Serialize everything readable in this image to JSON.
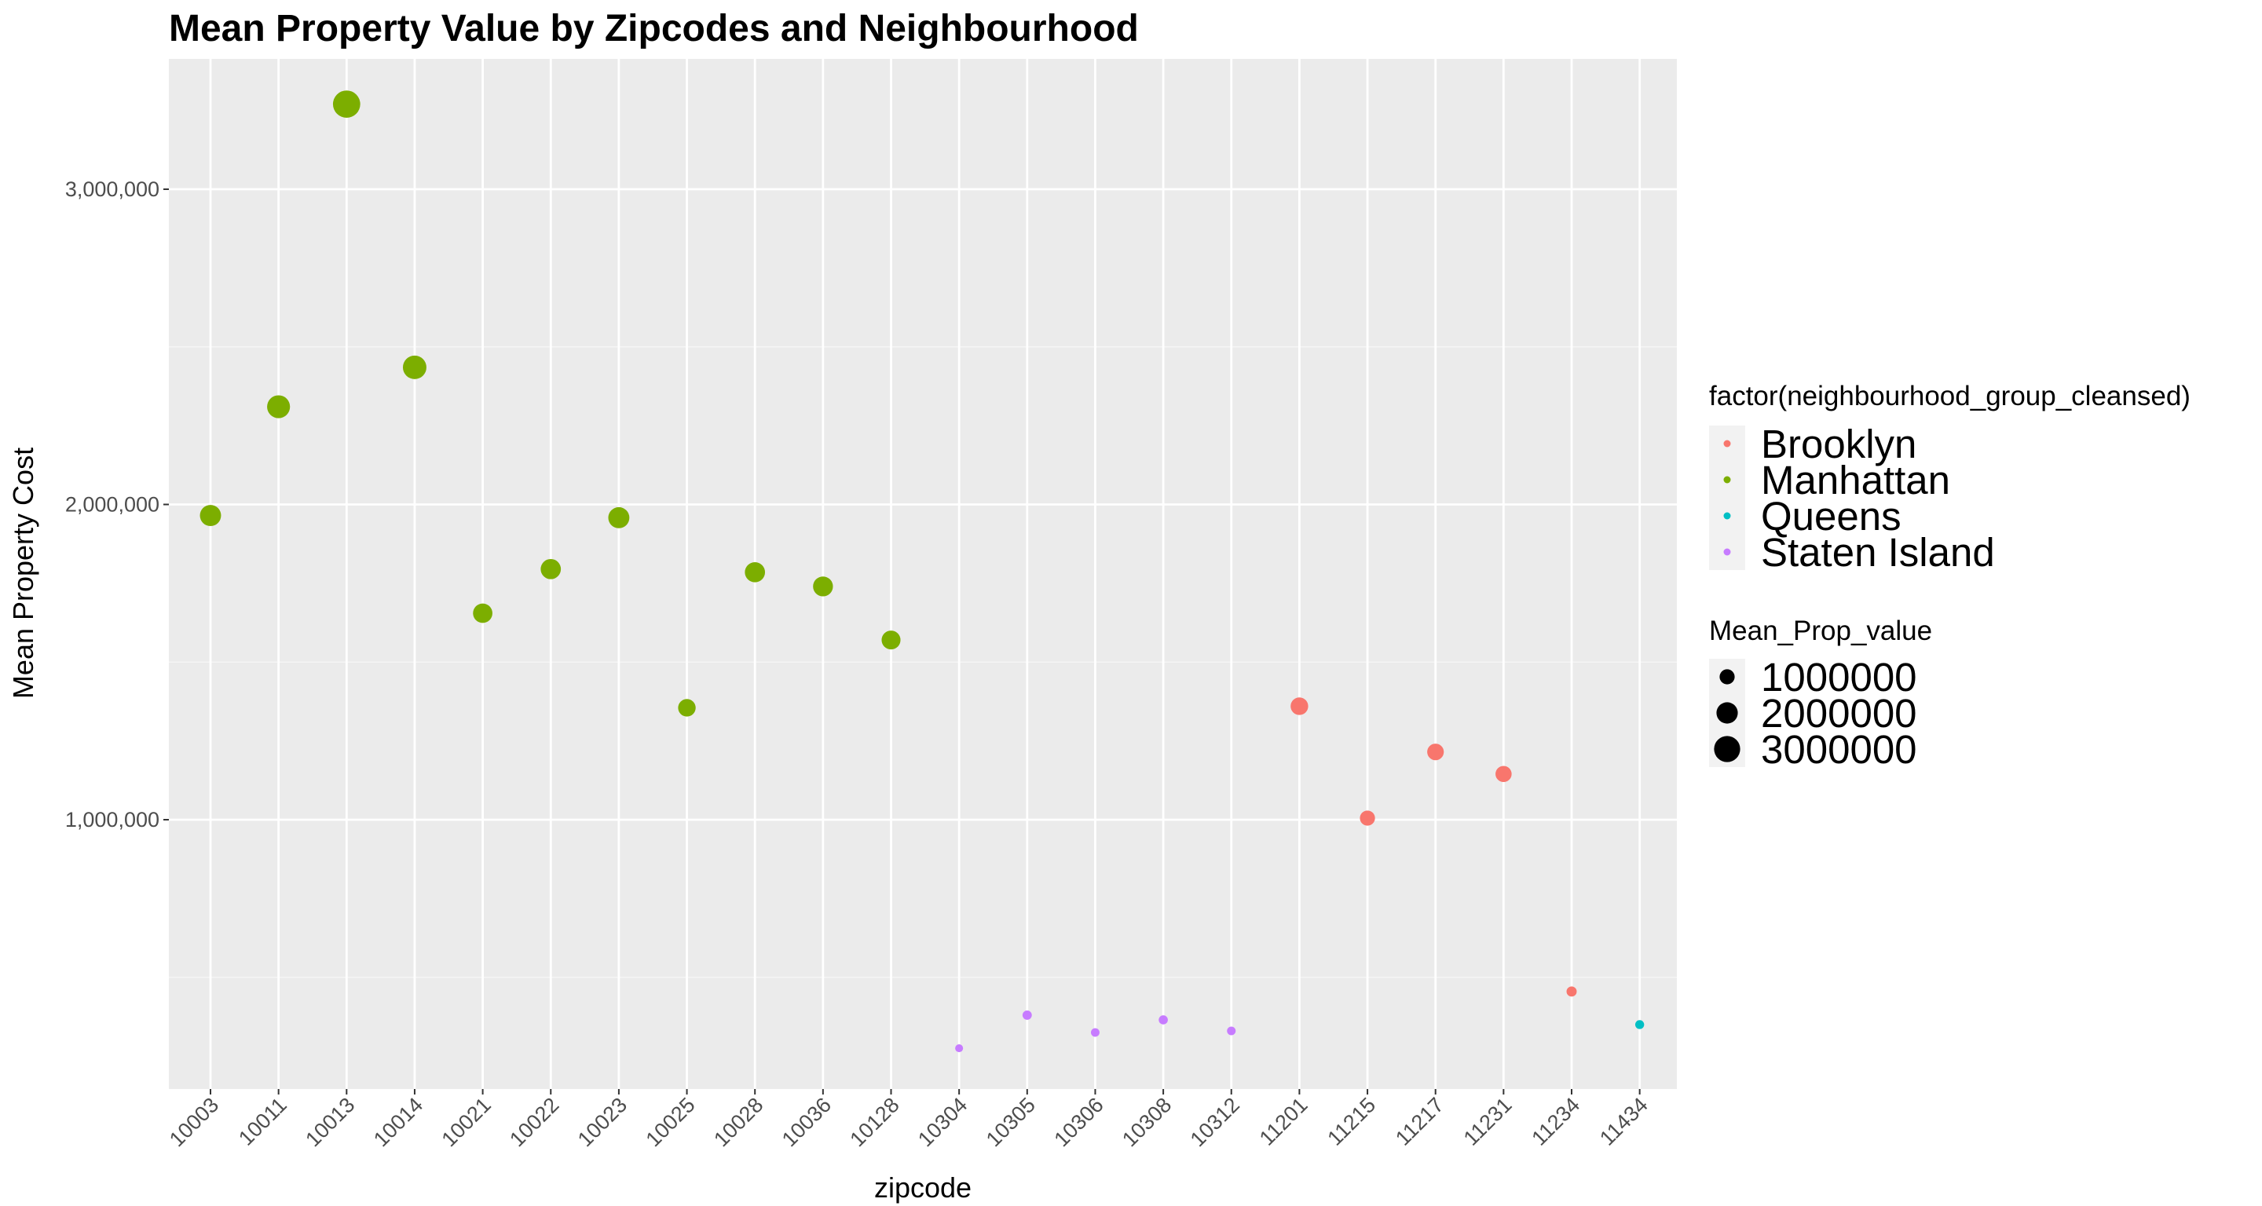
{
  "chart_data": {
    "type": "scatter",
    "title": "Mean Property Value by Zipcodes and Neighbourhood",
    "xlabel": "zipcode",
    "ylabel": "Mean Property Cost",
    "categories": [
      "10003",
      "10011",
      "10013",
      "10014",
      "10021",
      "10022",
      "10023",
      "10025",
      "10028",
      "10036",
      "10128",
      "10304",
      "10305",
      "10306",
      "10308",
      "10312",
      "11201",
      "11215",
      "11217",
      "11231",
      "11234",
      "11434"
    ],
    "ylim": [
      0,
      3400000
    ],
    "y_ticks": [
      1000000,
      2000000,
      3000000
    ],
    "y_tick_labels": [
      "1,000,000",
      "2,000,000",
      "3,000,000"
    ],
    "grid": true,
    "colors": {
      "panel_background": "#ebebeb",
      "grid_major": "#ffffff",
      "grid_minor": "#f5f5f5"
    },
    "series": [
      {
        "name": "Brooklyn",
        "color": "#f8766d",
        "points": [
          {
            "x": "11201",
            "y": 1360000
          },
          {
            "x": "11215",
            "y": 1005000
          },
          {
            "x": "11217",
            "y": 1215000
          },
          {
            "x": "11231",
            "y": 1145000
          },
          {
            "x": "11234",
            "y": 455000
          }
        ]
      },
      {
        "name": "Manhattan",
        "color": "#7cae00",
        "points": [
          {
            "x": "10003",
            "y": 1965000
          },
          {
            "x": "10011",
            "y": 2310000
          },
          {
            "x": "10013",
            "y": 3270000
          },
          {
            "x": "10014",
            "y": 2435000
          },
          {
            "x": "10021",
            "y": 1655000
          },
          {
            "x": "10022",
            "y": 1795000
          },
          {
            "x": "10023",
            "y": 1958000
          },
          {
            "x": "10025",
            "y": 1355000
          },
          {
            "x": "10028",
            "y": 1785000
          },
          {
            "x": "10036",
            "y": 1740000
          },
          {
            "x": "10128",
            "y": 1570000
          }
        ]
      },
      {
        "name": "Queens",
        "color": "#00bfc4",
        "points": [
          {
            "x": "11434",
            "y": 350000
          }
        ]
      },
      {
        "name": "Staten Island",
        "color": "#c77cff",
        "points": [
          {
            "x": "10304",
            "y": 275000
          },
          {
            "x": "10305",
            "y": 380000
          },
          {
            "x": "10306",
            "y": 325000
          },
          {
            "x": "10308",
            "y": 365000
          },
          {
            "x": "10312",
            "y": 330000
          }
        ]
      }
    ],
    "legend": {
      "placement": "right",
      "color_title": "factor(neighbourhood_group_cleansed)",
      "color_entries": [
        "Brooklyn",
        "Manhattan",
        "Queens",
        "Staten Island"
      ],
      "size_title": "Mean_Prop_value",
      "size_entries": [
        {
          "label": "1000000",
          "value": 1000000
        },
        {
          "label": "2000000",
          "value": 2000000
        },
        {
          "label": "3000000",
          "value": 3000000
        }
      ]
    }
  }
}
